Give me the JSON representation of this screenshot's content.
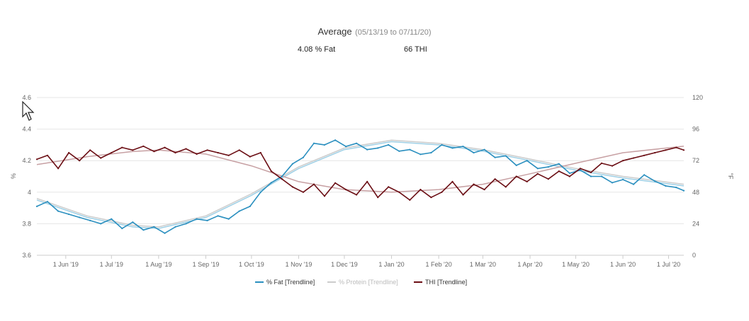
{
  "header": {
    "title": "Average",
    "range": "(05/13/19 to 07/11/20)",
    "fat_stat": "4.08 % Fat",
    "thi_stat": "66 THI"
  },
  "colors": {
    "fat": "#2a8fbf",
    "fat_trend": "#9fd0e6",
    "protein_trend": "#cccccc",
    "thi": "#6b0e14",
    "thi_trend": "#c7a0a3",
    "grid": "#e6e6e6"
  },
  "chart_data": {
    "type": "line",
    "x_range": [
      "2019-05-13",
      "2020-07-11"
    ],
    "x_ticks": [
      {
        "date": "2019-06-01",
        "label": "1 Jun '19"
      },
      {
        "date": "2019-07-01",
        "label": "1 Jul '19"
      },
      {
        "date": "2019-08-01",
        "label": "1 Aug '19"
      },
      {
        "date": "2019-09-01",
        "label": "1 Sep '19"
      },
      {
        "date": "2019-10-01",
        "label": "1 Oct '19"
      },
      {
        "date": "2019-11-01",
        "label": "1 Nov '19"
      },
      {
        "date": "2019-12-01",
        "label": "1 Dec '19"
      },
      {
        "date": "2020-01-01",
        "label": "1 Jan '20"
      },
      {
        "date": "2020-02-01",
        "label": "1 Feb '20"
      },
      {
        "date": "2020-03-01",
        "label": "1 Mar '20"
      },
      {
        "date": "2020-04-01",
        "label": "1 Apr '20"
      },
      {
        "date": "2020-05-01",
        "label": "1 May '20"
      },
      {
        "date": "2020-06-01",
        "label": "1 Jun '20"
      },
      {
        "date": "2020-07-01",
        "label": "1 Jul '20"
      }
    ],
    "y_left": {
      "label": "%",
      "min": 3.6,
      "max": 4.6,
      "ticks": [
        "3.6",
        "3.8",
        "4",
        "4.2",
        "4.4",
        "4.6"
      ]
    },
    "y_right": {
      "label": "°F",
      "min": 0,
      "max": 120,
      "ticks": [
        "0",
        "24",
        "48",
        "72",
        "96",
        "120"
      ]
    },
    "grid": true,
    "legend_position": "bottom-center",
    "legend": [
      "% Fat [Trendline]",
      "% Protein [Trendline]",
      "THI [Trendline]"
    ],
    "series": [
      {
        "name": "% Fat",
        "axis": "left",
        "x": [
          "2019-05-13",
          "2019-05-20",
          "2019-05-27",
          "2019-06-03",
          "2019-06-10",
          "2019-06-17",
          "2019-06-24",
          "2019-07-01",
          "2019-07-08",
          "2019-07-15",
          "2019-07-22",
          "2019-07-29",
          "2019-08-05",
          "2019-08-12",
          "2019-08-19",
          "2019-08-26",
          "2019-09-02",
          "2019-09-09",
          "2019-09-16",
          "2019-09-23",
          "2019-09-30",
          "2019-10-07",
          "2019-10-14",
          "2019-10-21",
          "2019-10-28",
          "2019-11-04",
          "2019-11-11",
          "2019-11-18",
          "2019-11-25",
          "2019-12-02",
          "2019-12-09",
          "2019-12-16",
          "2019-12-23",
          "2019-12-30",
          "2020-01-06",
          "2020-01-13",
          "2020-01-20",
          "2020-01-27",
          "2020-02-03",
          "2020-02-10",
          "2020-02-17",
          "2020-02-24",
          "2020-03-02",
          "2020-03-09",
          "2020-03-16",
          "2020-03-23",
          "2020-03-30",
          "2020-04-06",
          "2020-04-13",
          "2020-04-20",
          "2020-04-27",
          "2020-05-04",
          "2020-05-11",
          "2020-05-18",
          "2020-05-25",
          "2020-06-01",
          "2020-06-08",
          "2020-06-15",
          "2020-06-22",
          "2020-06-29",
          "2020-07-06",
          "2020-07-11"
        ],
        "values": [
          3.91,
          3.94,
          3.88,
          3.86,
          3.84,
          3.82,
          3.8,
          3.83,
          3.77,
          3.81,
          3.76,
          3.78,
          3.74,
          3.78,
          3.8,
          3.83,
          3.82,
          3.85,
          3.83,
          3.88,
          3.91,
          4.0,
          4.06,
          4.1,
          4.18,
          4.22,
          4.31,
          4.3,
          4.33,
          4.29,
          4.31,
          4.27,
          4.28,
          4.3,
          4.26,
          4.27,
          4.24,
          4.25,
          4.3,
          4.28,
          4.29,
          4.25,
          4.27,
          4.22,
          4.23,
          4.17,
          4.2,
          4.15,
          4.16,
          4.18,
          4.12,
          4.14,
          4.1,
          4.1,
          4.06,
          4.08,
          4.05,
          4.11,
          4.07,
          4.04,
          4.03,
          4.01
        ]
      },
      {
        "name": "THI",
        "axis": "right",
        "x": [
          "2019-05-13",
          "2019-05-20",
          "2019-05-27",
          "2019-06-03",
          "2019-06-10",
          "2019-06-17",
          "2019-06-24",
          "2019-07-01",
          "2019-07-08",
          "2019-07-15",
          "2019-07-22",
          "2019-07-29",
          "2019-08-05",
          "2019-08-12",
          "2019-08-19",
          "2019-08-26",
          "2019-09-02",
          "2019-09-09",
          "2019-09-16",
          "2019-09-23",
          "2019-09-30",
          "2019-10-07",
          "2019-10-14",
          "2019-10-21",
          "2019-10-28",
          "2019-11-04",
          "2019-11-11",
          "2019-11-18",
          "2019-11-25",
          "2019-12-02",
          "2019-12-09",
          "2019-12-16",
          "2019-12-23",
          "2019-12-30",
          "2020-01-06",
          "2020-01-13",
          "2020-01-20",
          "2020-01-27",
          "2020-02-03",
          "2020-02-10",
          "2020-02-17",
          "2020-02-24",
          "2020-03-02",
          "2020-03-09",
          "2020-03-16",
          "2020-03-23",
          "2020-03-30",
          "2020-04-06",
          "2020-04-13",
          "2020-04-20",
          "2020-04-27",
          "2020-05-04",
          "2020-05-11",
          "2020-05-18",
          "2020-05-25",
          "2020-06-01",
          "2020-06-08",
          "2020-06-15",
          "2020-06-22",
          "2020-06-29",
          "2020-07-06",
          "2020-07-11"
        ],
        "values": [
          73,
          76,
          66,
          78,
          72,
          80,
          74,
          78,
          82,
          80,
          83,
          79,
          82,
          78,
          81,
          77,
          80,
          78,
          76,
          80,
          75,
          78,
          64,
          58,
          52,
          48,
          54,
          45,
          55,
          50,
          46,
          56,
          44,
          52,
          48,
          42,
          50,
          44,
          48,
          56,
          46,
          54,
          50,
          58,
          52,
          60,
          56,
          62,
          58,
          64,
          60,
          66,
          63,
          70,
          68,
          72,
          74,
          76,
          78,
          80,
          82,
          80
        ]
      }
    ],
    "trendlines": [
      {
        "name": "% Fat [Trendline]",
        "axis": "left",
        "x": [
          "2019-05-13",
          "2019-06-15",
          "2019-07-15",
          "2019-08-01",
          "2019-09-01",
          "2019-10-01",
          "2019-11-01",
          "2019-12-01",
          "2020-01-01",
          "2020-02-01",
          "2020-03-01",
          "2020-04-01",
          "2020-05-01",
          "2020-06-01",
          "2020-07-11"
        ],
        "values": [
          3.95,
          3.84,
          3.78,
          3.77,
          3.84,
          3.98,
          4.15,
          4.27,
          4.32,
          4.3,
          4.26,
          4.2,
          4.14,
          4.09,
          4.04
        ]
      },
      {
        "name": "% Protein [Trendline]",
        "axis": "left",
        "x": [
          "2019-05-13",
          "2019-06-15",
          "2019-07-15",
          "2019-08-01",
          "2019-09-01",
          "2019-10-01",
          "2019-11-01",
          "2019-12-01",
          "2020-01-01",
          "2020-02-01",
          "2020-03-01",
          "2020-04-01",
          "2020-05-01",
          "2020-06-01",
          "2020-07-11"
        ],
        "values": [
          3.96,
          3.85,
          3.79,
          3.78,
          3.85,
          3.99,
          4.16,
          4.28,
          4.33,
          4.31,
          4.27,
          4.21,
          4.15,
          4.1,
          4.05
        ]
      },
      {
        "name": "THI [Trendline]",
        "axis": "right",
        "x": [
          "2019-05-13",
          "2019-06-15",
          "2019-07-15",
          "2019-08-01",
          "2019-09-01",
          "2019-10-01",
          "2019-11-01",
          "2019-12-01",
          "2020-01-01",
          "2020-02-01",
          "2020-03-01",
          "2020-04-01",
          "2020-05-01",
          "2020-06-01",
          "2020-07-11"
        ],
        "values": [
          69,
          75,
          79,
          80,
          77,
          68,
          56,
          50,
          48,
          50,
          54,
          62,
          70,
          78,
          83
        ]
      }
    ]
  }
}
